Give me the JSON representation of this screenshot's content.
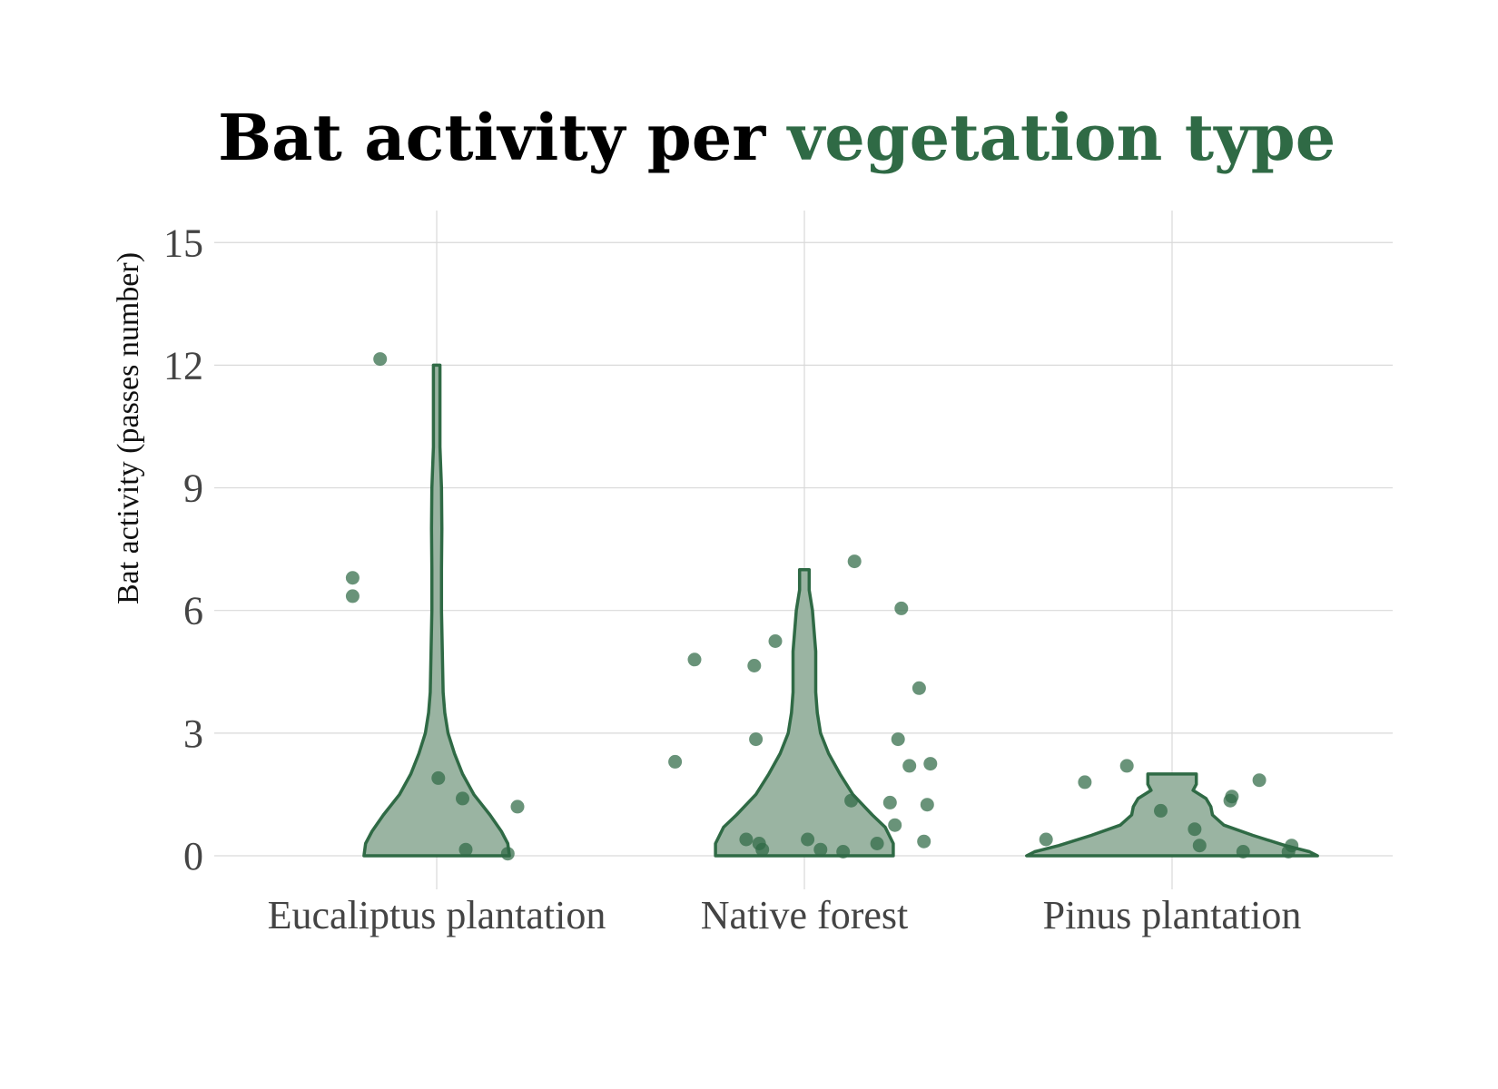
{
  "colors": {
    "accent": "#2f6a45",
    "violin_fill": "#9ab4a2",
    "violin_stroke": "#2f6a45",
    "point": "#2f6a45",
    "title_main": "#000000",
    "grid": "#d9d9d9"
  },
  "chart_data": {
    "type": "violin",
    "title_parts": [
      "Bat activity per ",
      "vegetation type"
    ],
    "xlabel": "",
    "ylabel": "Bat activity (passes number)",
    "ylim": [
      -0.75,
      15.75
    ],
    "yticks": [
      0,
      3,
      6,
      9,
      12,
      15
    ],
    "grid": true,
    "legend": "none",
    "categories": [
      "Eucaliptus plantation",
      "Native forest",
      "Pinus plantation"
    ],
    "violins": [
      {
        "category": "Eucaliptus plantation",
        "profile": [
          [
            0,
            0.45
          ],
          [
            0.3,
            0.44
          ],
          [
            0.6,
            0.4
          ],
          [
            1,
            0.33
          ],
          [
            1.5,
            0.23
          ],
          [
            2,
            0.16
          ],
          [
            2.5,
            0.11
          ],
          [
            3,
            0.07
          ],
          [
            3.5,
            0.05
          ],
          [
            4,
            0.04
          ],
          [
            5,
            0.035
          ],
          [
            6,
            0.03
          ],
          [
            7,
            0.03
          ],
          [
            8,
            0.032
          ],
          [
            9,
            0.03
          ],
          [
            10,
            0.02
          ],
          [
            11,
            0.02
          ],
          [
            12,
            0.02
          ]
        ]
      },
      {
        "category": "Native forest",
        "profile": [
          [
            0,
            0.55
          ],
          [
            0.3,
            0.55
          ],
          [
            0.7,
            0.5
          ],
          [
            1,
            0.42
          ],
          [
            1.5,
            0.3
          ],
          [
            2,
            0.22
          ],
          [
            2.5,
            0.15
          ],
          [
            3,
            0.1
          ],
          [
            3.5,
            0.08
          ],
          [
            4,
            0.07
          ],
          [
            5,
            0.07
          ],
          [
            6,
            0.05
          ],
          [
            6.5,
            0.03
          ],
          [
            7,
            0.03
          ]
        ]
      },
      {
        "category": "Pinus plantation",
        "profile": [
          [
            0,
            0.9
          ],
          [
            0.1,
            0.85
          ],
          [
            0.25,
            0.7
          ],
          [
            0.5,
            0.5
          ],
          [
            0.75,
            0.32
          ],
          [
            1,
            0.25
          ],
          [
            1.2,
            0.24
          ],
          [
            1.4,
            0.21
          ],
          [
            1.6,
            0.13
          ],
          [
            1.75,
            0.15
          ],
          [
            2,
            0.15
          ]
        ]
      }
    ],
    "points": [
      {
        "category": "Eucaliptus plantation",
        "values": [
          12.15,
          6.8,
          6.35,
          1.9,
          1.4,
          0.15,
          0.05,
          1.2
        ],
        "jitter": [
          -0.35,
          -0.52,
          -0.52,
          0.01,
          0.16,
          0.18,
          0.44,
          0.5
        ]
      },
      {
        "category": "Native forest",
        "values": [
          4.8,
          2.3,
          4.65,
          5.25,
          2.85,
          0.4,
          0.3,
          0.15,
          0.4,
          0.15,
          0.1,
          1.35,
          7.2,
          6.05,
          4.1,
          2.85,
          1.3,
          0.75,
          0.3,
          2.2,
          2.25,
          1.25,
          0.35
        ],
        "jitter": [
          -0.68,
          -0.8,
          -0.31,
          -0.18,
          -0.3,
          -0.36,
          -0.28,
          -0.26,
          0.02,
          0.1,
          0.24,
          0.29,
          0.31,
          0.6,
          0.71,
          0.58,
          0.53,
          0.56,
          0.45,
          0.65,
          0.78,
          0.76,
          0.74
        ]
      },
      {
        "category": "Pinus plantation",
        "values": [
          0.4,
          1.8,
          2.2,
          1.1,
          0.65,
          0.25,
          1.35,
          1.45,
          0.1,
          1.85,
          0.1,
          0.25
        ],
        "jitter": [
          -0.78,
          -0.54,
          -0.28,
          -0.07,
          0.14,
          0.17,
          0.36,
          0.37,
          0.44,
          0.54,
          0.72,
          0.74
        ]
      }
    ]
  }
}
